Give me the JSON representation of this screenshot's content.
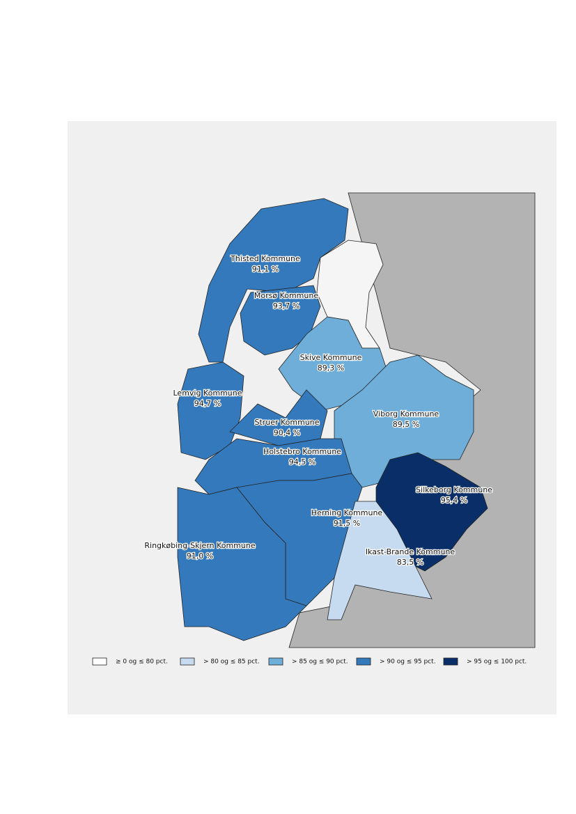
{
  "regions": [
    {
      "name": "Thisted Kommune",
      "value": "91,1 %",
      "color": "#3479bb"
    },
    {
      "name": "Morsø Kommune",
      "value": "93,7 %",
      "color": "#3479bb"
    },
    {
      "name": "Skive Kommune",
      "value": "89,3 %",
      "color": "#6eaed8"
    },
    {
      "name": "Lemvig Kommune",
      "value": "94,7 %",
      "color": "#3479bb"
    },
    {
      "name": "Struer Kommune",
      "value": "90,4 %",
      "color": "#3479bb"
    },
    {
      "name": "Viborg Kommune",
      "value": "89,5 %",
      "color": "#6eaed8"
    },
    {
      "name": "Holstebro Kommune",
      "value": "94,5 %",
      "color": "#3479bb"
    },
    {
      "name": "Silkeborg Kommune",
      "value": "95,4 %",
      "color": "#0a2f68"
    },
    {
      "name": "Herning Kommune",
      "value": "91,5 %",
      "color": "#3479bb"
    },
    {
      "name": "Ikast-Brande Kommune",
      "value": "83,5 %",
      "color": "#c6dbef"
    },
    {
      "name": "Ringkøbing-Skjern Kommune",
      "value": "91,0 %",
      "color": "#3479bb"
    }
  ],
  "legend": [
    {
      "label": "≥ 0 og ≤ 80 pct.",
      "color": "#ffffff"
    },
    {
      "label": "> 80 og ≤ 85 pct.",
      "color": "#c6dbef"
    },
    {
      "label": "> 85 og ≤ 90 pct.",
      "color": "#6eaed8"
    },
    {
      "label": "> 90 og ≤ 95 pct.",
      "color": "#3479bb"
    },
    {
      "label": "> 95 og ≤ 100 pct.",
      "color": "#0a2f68"
    }
  ]
}
